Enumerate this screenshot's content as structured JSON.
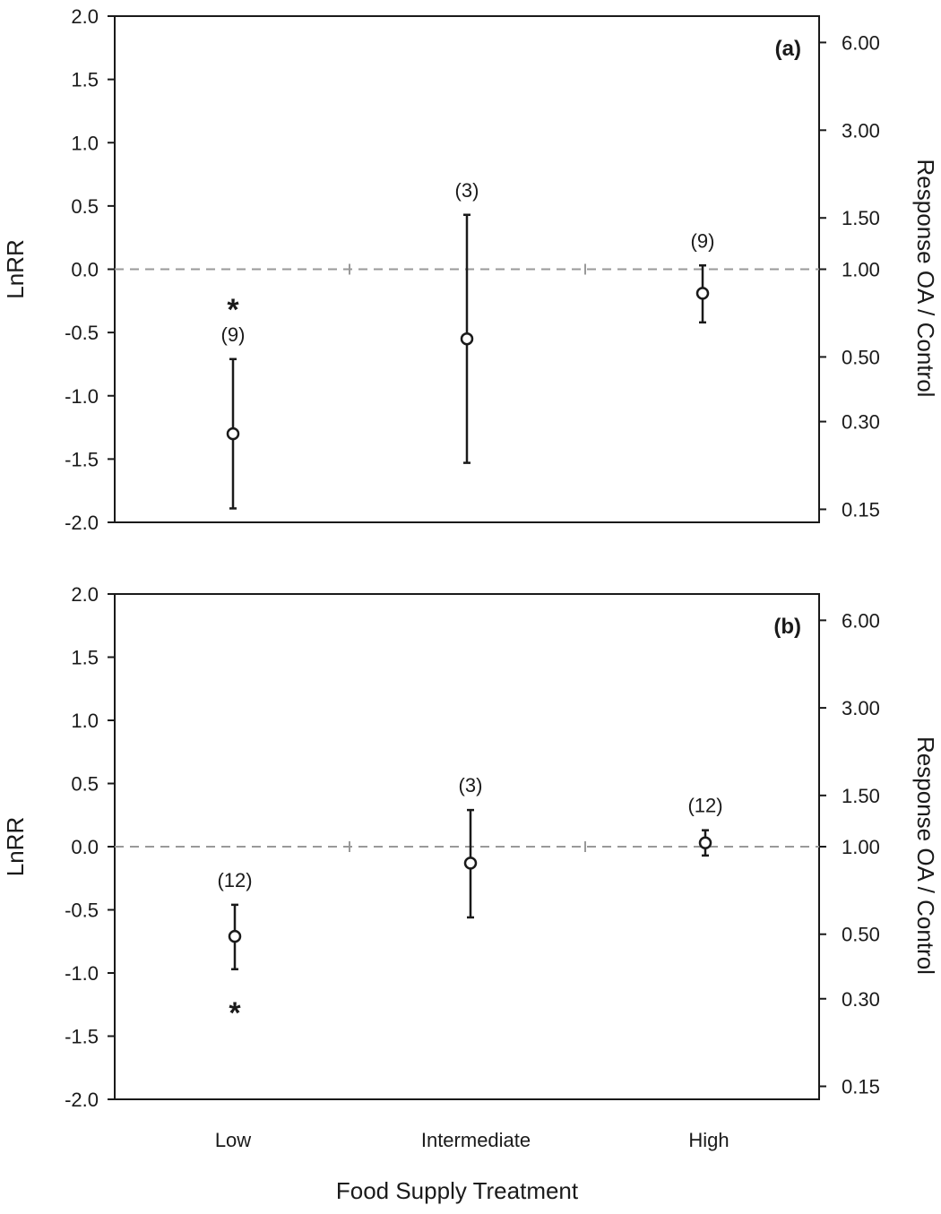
{
  "chart_data": [
    {
      "type": "scatter",
      "panel_label": "(a)",
      "ylabel": "LnRR",
      "ylabel_right": "Response OA / Control",
      "ylim": [
        -2.0,
        2.0
      ],
      "yticks": [
        "2.0",
        "1.5",
        "1.0",
        "0.5",
        "0.0",
        "-0.5",
        "-1.0",
        "-1.5",
        "-2.0"
      ],
      "right_ticks": [
        "6.00",
        "3.00",
        "1.50",
        "1.00",
        "0.50",
        "0.30",
        "0.15"
      ],
      "right_log_scale": true,
      "reference_line": 0.0,
      "categories": [
        "Low",
        "Intermediate",
        "High"
      ],
      "points": [
        {
          "category": "Low",
          "value": -1.3,
          "lower": -1.89,
          "upper": -0.71,
          "n": "(9)",
          "significant": true,
          "star_position": "above"
        },
        {
          "category": "Intermediate",
          "value": -0.55,
          "lower": -1.53,
          "upper": 0.43,
          "n": "(3)",
          "significant": false
        },
        {
          "category": "High",
          "value": -0.19,
          "lower": -0.42,
          "upper": 0.03,
          "n": "(9)",
          "significant": false
        }
      ]
    },
    {
      "type": "scatter",
      "panel_label": "(b)",
      "ylabel": "LnRR",
      "ylabel_right": "Response OA / Control",
      "ylim": [
        -2.0,
        2.0
      ],
      "yticks": [
        "2.0",
        "1.5",
        "1.0",
        "0.5",
        "0.0",
        "-0.5",
        "-1.0",
        "-1.5",
        "-2.0"
      ],
      "right_ticks": [
        "6.00",
        "3.00",
        "1.50",
        "1.00",
        "0.50",
        "0.30",
        "0.15"
      ],
      "right_log_scale": true,
      "reference_line": 0.0,
      "categories": [
        "Low",
        "Intermediate",
        "High"
      ],
      "points": [
        {
          "category": "Low",
          "value": -0.71,
          "lower": -0.97,
          "upper": -0.46,
          "n": "(12)",
          "significant": true,
          "star_position": "below"
        },
        {
          "category": "Intermediate",
          "value": -0.13,
          "lower": -0.56,
          "upper": 0.29,
          "n": "(3)",
          "significant": false
        },
        {
          "category": "High",
          "value": 0.03,
          "lower": -0.07,
          "upper": 0.13,
          "n": "(12)",
          "significant": false
        }
      ]
    }
  ],
  "xlabel": "Food Supply Treatment",
  "star_symbol": "*"
}
